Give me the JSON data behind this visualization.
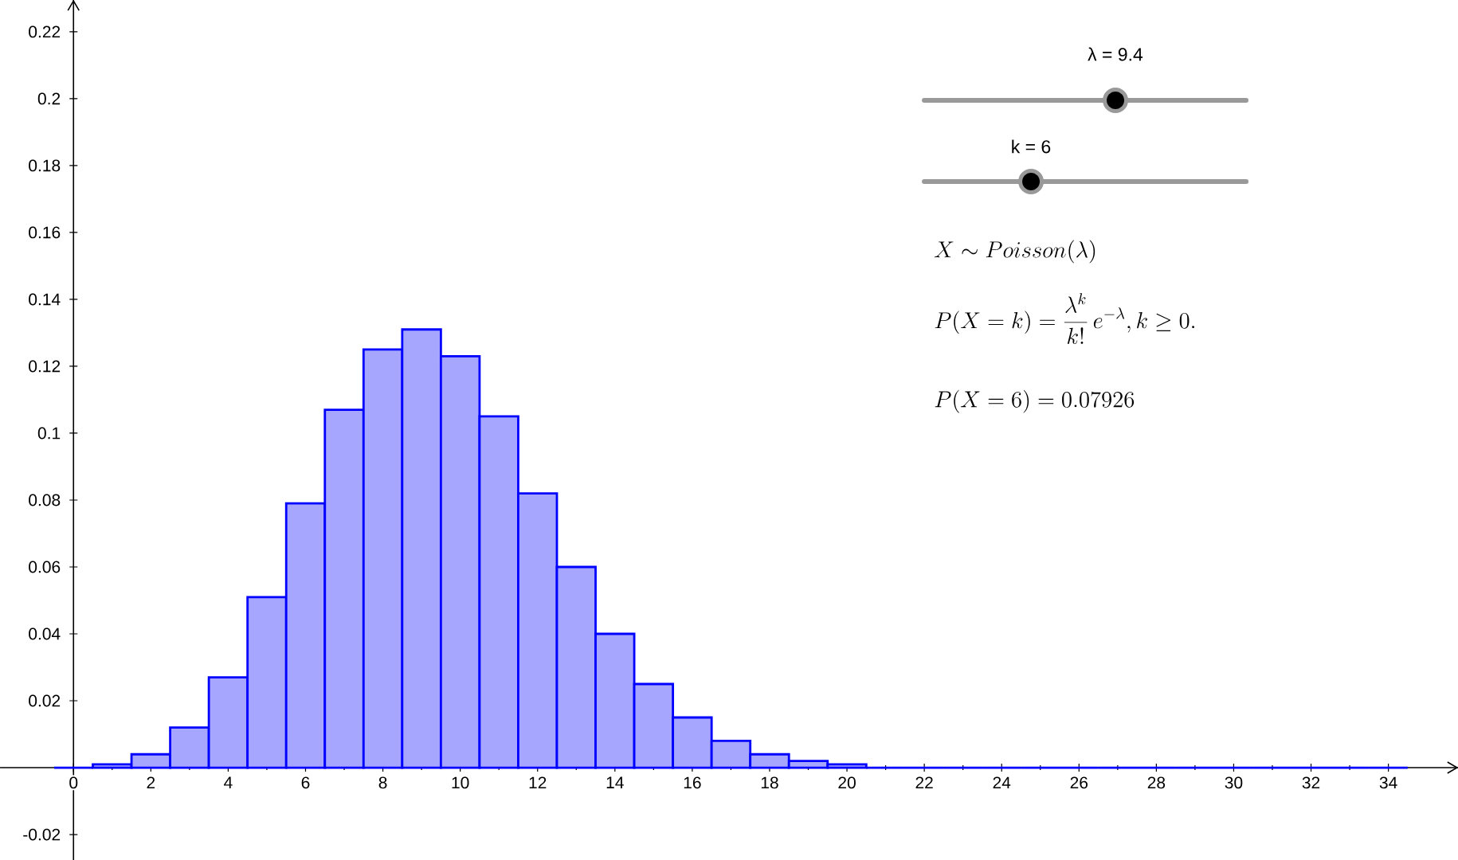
{
  "chart_data": {
    "type": "histogram",
    "bins": [
      -0.5,
      0.5,
      1.5,
      2.5,
      3.5,
      4.5,
      5.5,
      6.5,
      7.5,
      8.5,
      9.5,
      10.5,
      11.5,
      12.5,
      13.5,
      14.5,
      15.5,
      16.5,
      17.5,
      18.5,
      19.5,
      20.5,
      21.5,
      22.5,
      23.5,
      24.5,
      25.5,
      26.5,
      27.5,
      28.5,
      29.5,
      30.5,
      31.5,
      32.5,
      33.5,
      34.5
    ],
    "values": [
      0,
      0.001,
      0.004,
      0.012,
      0.027,
      0.051,
      0.079,
      0.107,
      0.125,
      0.131,
      0.123,
      0.105,
      0.082,
      0.06,
      0.04,
      0.025,
      0.015,
      0.008,
      0.004,
      0.002,
      0.001,
      0,
      0,
      0,
      0,
      0,
      0,
      0,
      0,
      0,
      0,
      0,
      0,
      0,
      0
    ],
    "color": "#0000ff",
    "xlim": [
      -1.9,
      35.8
    ],
    "ylim": [
      -0.0276,
      0.2295
    ],
    "xticks": [
      0,
      2,
      4,
      6,
      8,
      10,
      12,
      14,
      16,
      18,
      20,
      22,
      24,
      26,
      28,
      30,
      32,
      34
    ],
    "yticks": [
      -0.02,
      0.02,
      0.04,
      0.06,
      0.08,
      0.1,
      0.12,
      0.14,
      0.16,
      0.18,
      0.2,
      0.22
    ],
    "annotations": [
      "λ = 9.4",
      "k = 6",
      "X \\sim Poisson(\\lambda)",
      "P(X = k) = \\frac{\\lambda^k}{k!}\\, e^{-\\lambda}, k \\geq 0.",
      "P(X = 6) = 0.07926"
    ]
  }
}
